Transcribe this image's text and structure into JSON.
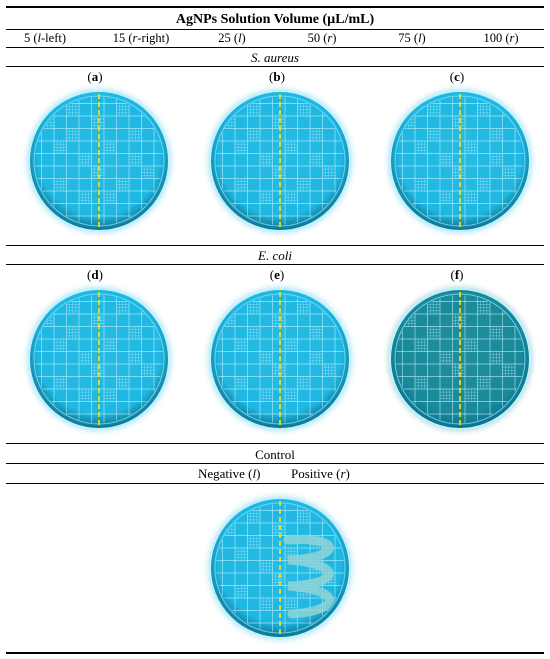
{
  "table": {
    "header": "AgNPs Solution Volume (µL/mL)",
    "volumes": [
      {
        "pre": "5 (",
        "it": "l",
        "post": "-left)"
      },
      {
        "pre": "15 (",
        "it": "r",
        "post": "-right)"
      },
      {
        "pre": "25 (",
        "it": "l",
        "post": ")"
      },
      {
        "pre": "50 (",
        "it": "r",
        "post": ")"
      },
      {
        "pre": "75 (",
        "it": "l",
        "post": ")"
      },
      {
        "pre": "100 (",
        "it": "r",
        "post": ")"
      }
    ],
    "section1": "S. aureus",
    "section2": "E. coli",
    "section3": "Control",
    "control_negative": {
      "pre": "Negative (",
      "it": "l",
      "post": ")"
    },
    "control_positive": {
      "pre": "Positive (",
      "it": "r",
      "post": ")"
    }
  },
  "panels": [
    {
      "letter": "a",
      "tint": "#1fb8e2"
    },
    {
      "letter": "b",
      "tint": "#1fb8e2"
    },
    {
      "letter": "c",
      "tint": "#1fb8e2"
    },
    {
      "letter": "d",
      "tint": "#1fb8e2"
    },
    {
      "letter": "e",
      "tint": "#1fb8e2"
    },
    {
      "letter": "f",
      "tint": "#198a9a"
    }
  ],
  "colors": {
    "dish_bright": "#1fb8e2",
    "dish_dark": "#198a9a",
    "divider_line": "#ffe800",
    "bacterial_streak": "#8fd3d6"
  }
}
